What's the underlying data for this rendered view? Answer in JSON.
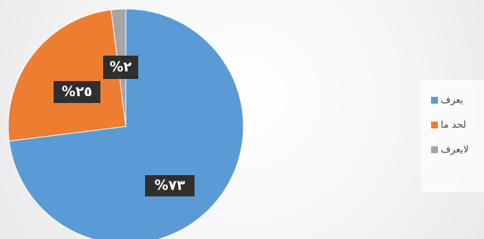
{
  "chart_data": {
    "type": "pie",
    "title": "",
    "categories": [
      "يعرف",
      "لحد ما",
      "لايعرف"
    ],
    "values": [
      73,
      25,
      2
    ],
    "labels": [
      "%٧٣",
      "%٢٥",
      "%٢"
    ],
    "colors": [
      "#5B9BD5",
      "#ED7D31",
      "#A5A5A5"
    ],
    "legend": {
      "position": "right",
      "items": [
        "يعرف",
        "لحد ما",
        "لايعرف"
      ]
    }
  }
}
